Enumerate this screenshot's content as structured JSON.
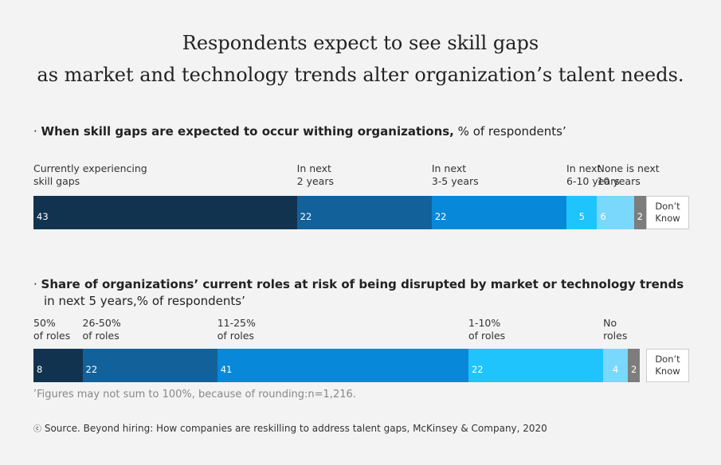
{
  "title": [
    "Respondents expect to see skill gaps",
    "as market and technology trends alter organization’s talent needs."
  ],
  "chart_data": [
    {
      "type": "stacked_bar",
      "title": "When skill gaps are expected to occur withing organizations,",
      "subtitle": "% of respondents’",
      "categories": [
        [
          "Currently experiencing",
          "skill gaps"
        ],
        [
          "In next",
          "2 years"
        ],
        [
          "In next",
          "3-5 years"
        ],
        [
          "In next",
          "6-10 years"
        ],
        [
          "None is next",
          "10 years"
        ],
        null
      ],
      "values": [
        43,
        22,
        22,
        5,
        6,
        2
      ],
      "colors": [
        "#12334f",
        "#13619a",
        "#0788d8",
        "#1ec4fb",
        "#79d8fb",
        "#7d7d7d"
      ],
      "other_label": [
        "Don’t",
        "Know"
      ],
      "xlim": [
        0,
        100
      ]
    },
    {
      "type": "stacked_bar",
      "title": "Share of organizations’ current roles at risk of being disrupted by market or technology trends",
      "subtitle": "in next 5 years,% of respondents’",
      "categories": [
        [
          "50%",
          "of roles"
        ],
        [
          "26-50%",
          "of roles"
        ],
        [
          "11-25%",
          "of roles"
        ],
        [
          "1-10%",
          "of roles"
        ],
        [
          "No",
          "roles"
        ],
        null
      ],
      "values": [
        8,
        22,
        41,
        22,
        4,
        2
      ],
      "colors": [
        "#12334f",
        "#13619a",
        "#0788d8",
        "#1ec4fb",
        "#79d8fb",
        "#7d7d7d"
      ],
      "other_label": [
        "Don’t",
        "Know"
      ],
      "xlim": [
        0,
        100
      ]
    }
  ],
  "note": "’Figures may not sum to 100%, because of rounding:n=1,216.",
  "source": "Source. Beyond hiring: How companies are reskilling to address talent gaps, McKinsey & Company, 2020"
}
